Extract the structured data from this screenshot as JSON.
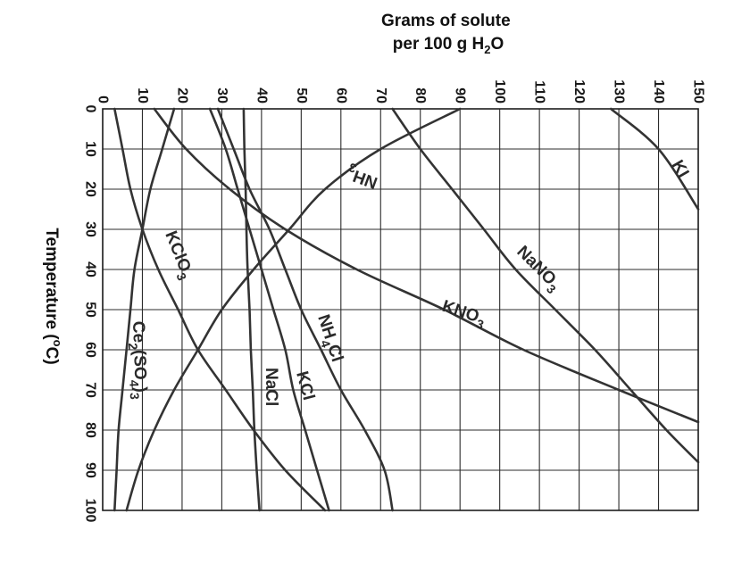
{
  "chart_data": {
    "type": "line",
    "title": "",
    "xlabel": [
      "Grams of solute",
      "per 100 g H",
      "2",
      "O"
    ],
    "ylabel": [
      "Temperature (",
      "o",
      "C)"
    ],
    "xlim": [
      0,
      150
    ],
    "ylim": [
      0,
      100
    ],
    "x_ticks": [
      0,
      10,
      20,
      30,
      40,
      50,
      60,
      70,
      80,
      90,
      100,
      110,
      120,
      130,
      140,
      150
    ],
    "y_ticks": [
      0,
      10,
      20,
      30,
      40,
      50,
      60,
      70,
      80,
      90,
      100
    ],
    "grid": true,
    "series": [
      {
        "name": "KI",
        "label": [
          "KI"
        ],
        "points": [
          [
            128,
            0
          ],
          [
            140,
            10
          ],
          [
            150,
            25
          ]
        ]
      },
      {
        "name": "NaNO3",
        "label": [
          "NaNO",
          "3"
        ],
        "points": [
          [
            73,
            0
          ],
          [
            80,
            10
          ],
          [
            88,
            20
          ],
          [
            96,
            30
          ],
          [
            104,
            40
          ],
          [
            114,
            50
          ],
          [
            124,
            60
          ],
          [
            133,
            70
          ],
          [
            142,
            80
          ],
          [
            150,
            88
          ]
        ]
      },
      {
        "name": "KNO3",
        "label": [
          "KNO",
          "3"
        ],
        "points": [
          [
            13,
            0
          ],
          [
            21,
            10
          ],
          [
            32,
            20
          ],
          [
            46,
            30
          ],
          [
            64,
            40
          ],
          [
            86,
            50
          ],
          [
            106,
            60
          ],
          [
            130,
            70
          ],
          [
            150,
            78
          ]
        ]
      },
      {
        "name": "NH3",
        "label": [
          "NH",
          "3"
        ],
        "points": [
          [
            90,
            0
          ],
          [
            70,
            10
          ],
          [
            56,
            20
          ],
          [
            47,
            30
          ],
          [
            38,
            40
          ],
          [
            30,
            50
          ],
          [
            24,
            60
          ],
          [
            18,
            70
          ],
          [
            13,
            80
          ],
          [
            9,
            90
          ],
          [
            6,
            100
          ]
        ]
      },
      {
        "name": "NH4Cl",
        "label": [
          "NH",
          "4",
          "Cl"
        ],
        "points": [
          [
            29,
            0
          ],
          [
            33,
            10
          ],
          [
            37,
            20
          ],
          [
            42,
            30
          ],
          [
            46,
            40
          ],
          [
            50,
            50
          ],
          [
            55,
            60
          ],
          [
            60,
            70
          ],
          [
            66,
            80
          ],
          [
            71,
            90
          ],
          [
            73,
            100
          ]
        ]
      },
      {
        "name": "KCl",
        "label": [
          "KCl"
        ],
        "points": [
          [
            27,
            0
          ],
          [
            31,
            10
          ],
          [
            34,
            20
          ],
          [
            37,
            30
          ],
          [
            40,
            40
          ],
          [
            43,
            50
          ],
          [
            46,
            60
          ],
          [
            48,
            70
          ],
          [
            51,
            80
          ],
          [
            54,
            90
          ],
          [
            57,
            100
          ]
        ]
      },
      {
        "name": "NaCl",
        "label": [
          "NaCl"
        ],
        "points": [
          [
            35.5,
            0
          ],
          [
            35.7,
            10
          ],
          [
            36,
            20
          ],
          [
            36.2,
            30
          ],
          [
            36.5,
            40
          ],
          [
            37,
            50
          ],
          [
            37.3,
            60
          ],
          [
            37.8,
            70
          ],
          [
            38.2,
            80
          ],
          [
            38.8,
            90
          ],
          [
            39.5,
            100
          ]
        ]
      },
      {
        "name": "KClO3",
        "label": [
          "KClO",
          "3"
        ],
        "points": [
          [
            3,
            0
          ],
          [
            5,
            10
          ],
          [
            7,
            20
          ],
          [
            10,
            30
          ],
          [
            14,
            40
          ],
          [
            19,
            50
          ],
          [
            24,
            60
          ],
          [
            31,
            70
          ],
          [
            38,
            80
          ],
          [
            46,
            90
          ],
          [
            56,
            100
          ]
        ]
      },
      {
        "name": "Ce2(SO4)3",
        "label": [
          "Ce",
          "2",
          "(SO",
          "4",
          ")",
          "3"
        ],
        "points": [
          [
            18,
            0
          ],
          [
            15,
            10
          ],
          [
            12,
            20
          ],
          [
            10,
            30
          ],
          [
            8,
            40
          ],
          [
            7,
            50
          ],
          [
            6,
            60
          ],
          [
            5,
            70
          ],
          [
            4,
            80
          ],
          [
            3.5,
            90
          ],
          [
            3,
            100
          ]
        ]
      }
    ]
  }
}
